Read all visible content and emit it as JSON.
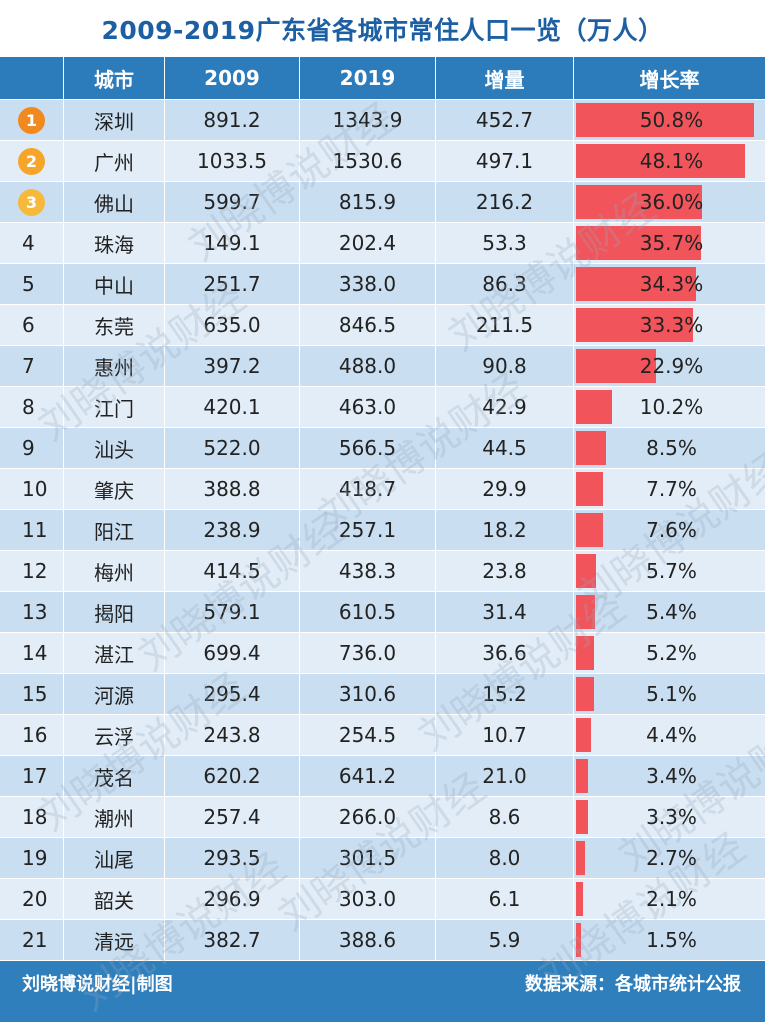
{
  "title": "2009-2019广东省各城市常住人口一览（万人）",
  "headers": {
    "rank": "",
    "city": "城市",
    "y2009": "2009",
    "y2019": "2019",
    "increase": "增量",
    "rate": "增长率"
  },
  "medal_colors": [
    "#f08a1e",
    "#f5a52a",
    "#f7b93c"
  ],
  "bar_color": "#f2545b",
  "chart_data": {
    "type": "table",
    "title": "2009-2019广东省各城市常住人口一览（万人）",
    "columns": [
      "城市",
      "2009",
      "2019",
      "增量",
      "增长率"
    ],
    "rows": [
      {
        "rank": "1",
        "city": "深圳",
        "y2009": "891.2",
        "y2019": "1343.9",
        "increase": "452.7",
        "rate": "50.8%",
        "rate_value": 50.8
      },
      {
        "rank": "2",
        "city": "广州",
        "y2009": "1033.5",
        "y2019": "1530.6",
        "increase": "497.1",
        "rate": "48.1%",
        "rate_value": 48.1
      },
      {
        "rank": "3",
        "city": "佛山",
        "y2009": "599.7",
        "y2019": "815.9",
        "increase": "216.2",
        "rate": "36.0%",
        "rate_value": 36.0
      },
      {
        "rank": "4",
        "city": "珠海",
        "y2009": "149.1",
        "y2019": "202.4",
        "increase": "53.3",
        "rate": "35.7%",
        "rate_value": 35.7
      },
      {
        "rank": "5",
        "city": "中山",
        "y2009": "251.7",
        "y2019": "338.0",
        "increase": "86.3",
        "rate": "34.3%",
        "rate_value": 34.3
      },
      {
        "rank": "6",
        "city": "东莞",
        "y2009": "635.0",
        "y2019": "846.5",
        "increase": "211.5",
        "rate": "33.3%",
        "rate_value": 33.3
      },
      {
        "rank": "7",
        "city": "惠州",
        "y2009": "397.2",
        "y2019": "488.0",
        "increase": "90.8",
        "rate": "22.9%",
        "rate_value": 22.9
      },
      {
        "rank": "8",
        "city": "江门",
        "y2009": "420.1",
        "y2019": "463.0",
        "increase": "42.9",
        "rate": "10.2%",
        "rate_value": 10.2
      },
      {
        "rank": "9",
        "city": "汕头",
        "y2009": "522.0",
        "y2019": "566.5",
        "increase": "44.5",
        "rate": "8.5%",
        "rate_value": 8.5
      },
      {
        "rank": "10",
        "city": "肇庆",
        "y2009": "388.8",
        "y2019": "418.7",
        "increase": "29.9",
        "rate": "7.7%",
        "rate_value": 7.7
      },
      {
        "rank": "11",
        "city": "阳江",
        "y2009": "238.9",
        "y2019": "257.1",
        "increase": "18.2",
        "rate": "7.6%",
        "rate_value": 7.6
      },
      {
        "rank": "12",
        "city": "梅州",
        "y2009": "414.5",
        "y2019": "438.3",
        "increase": "23.8",
        "rate": "5.7%",
        "rate_value": 5.7
      },
      {
        "rank": "13",
        "city": "揭阳",
        "y2009": "579.1",
        "y2019": "610.5",
        "increase": "31.4",
        "rate": "5.4%",
        "rate_value": 5.4
      },
      {
        "rank": "14",
        "city": "湛江",
        "y2009": "699.4",
        "y2019": "736.0",
        "increase": "36.6",
        "rate": "5.2%",
        "rate_value": 5.2
      },
      {
        "rank": "15",
        "city": "河源",
        "y2009": "295.4",
        "y2019": "310.6",
        "increase": "15.2",
        "rate": "5.1%",
        "rate_value": 5.1
      },
      {
        "rank": "16",
        "city": "云浮",
        "y2009": "243.8",
        "y2019": "254.5",
        "increase": "10.7",
        "rate": "4.4%",
        "rate_value": 4.4
      },
      {
        "rank": "17",
        "city": "茂名",
        "y2009": "620.2",
        "y2019": "641.2",
        "increase": "21.0",
        "rate": "3.4%",
        "rate_value": 3.4
      },
      {
        "rank": "18",
        "city": "潮州",
        "y2009": "257.4",
        "y2019": "266.0",
        "increase": "8.6",
        "rate": "3.3%",
        "rate_value": 3.3
      },
      {
        "rank": "19",
        "city": "汕尾",
        "y2009": "293.5",
        "y2019": "301.5",
        "increase": "8.0",
        "rate": "2.7%",
        "rate_value": 2.7
      },
      {
        "rank": "20",
        "city": "韶关",
        "y2009": "296.9",
        "y2019": "303.0",
        "increase": "6.1",
        "rate": "2.1%",
        "rate_value": 2.1
      },
      {
        "rank": "21",
        "city": "清远",
        "y2009": "382.7",
        "y2019": "388.6",
        "increase": "5.9",
        "rate": "1.5%",
        "rate_value": 1.5
      }
    ]
  },
  "footer": {
    "credit": "刘晓博说财经|制图",
    "source": "数据来源：各城市统计公报"
  },
  "watermark": "刘晓博说财经"
}
